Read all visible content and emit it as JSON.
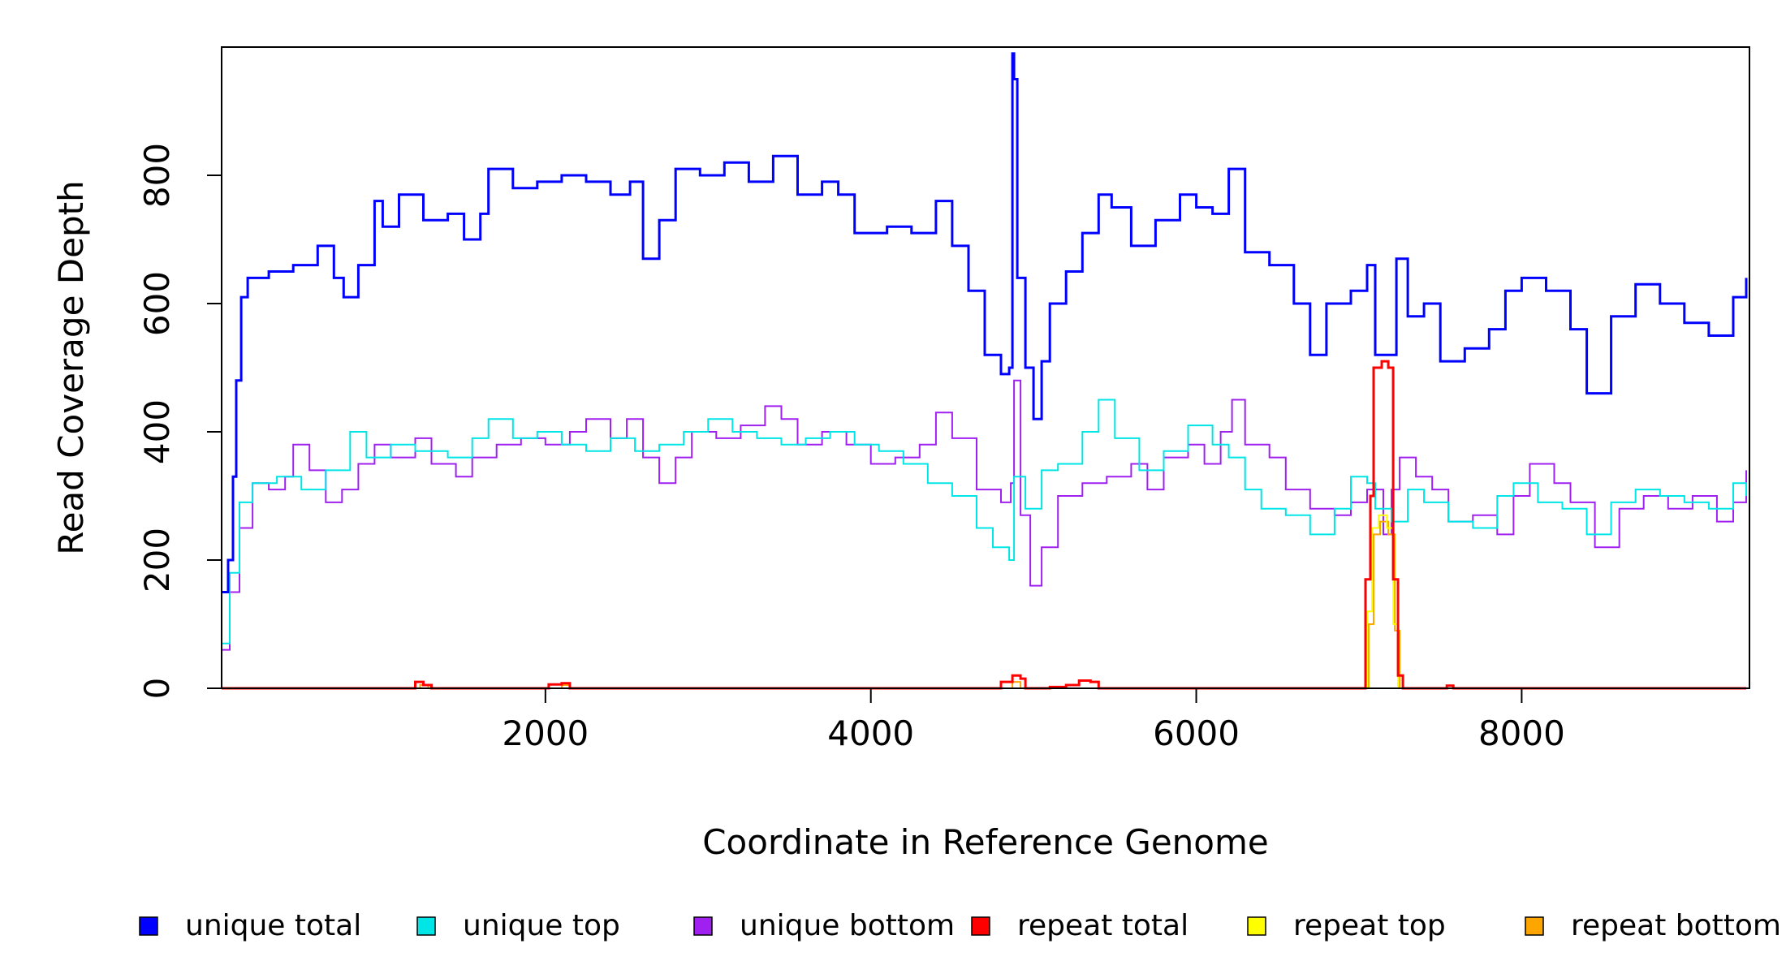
{
  "chart_data": {
    "type": "line",
    "xlabel": "Coordinate in Reference Genome",
    "ylabel": "Read Coverage Depth",
    "xlim": [
      10,
      9400
    ],
    "ylim": [
      0,
      1000
    ],
    "x_ticks": [
      2000,
      4000,
      6000,
      8000
    ],
    "x_tick_labels": [
      "2000",
      "4000",
      "6000",
      "8000"
    ],
    "y_ticks": [
      0,
      200,
      400,
      600,
      800
    ],
    "y_tick_labels": [
      "0",
      "200",
      "400",
      "600",
      "800"
    ],
    "grid": false,
    "legend_position": "bottom",
    "series": [
      {
        "name": "unique total",
        "color": "#0000ff",
        "points": [
          [
            10,
            150
          ],
          [
            50,
            200
          ],
          [
            80,
            330
          ],
          [
            100,
            480
          ],
          [
            130,
            610
          ],
          [
            170,
            640
          ],
          [
            300,
            650
          ],
          [
            450,
            660
          ],
          [
            600,
            690
          ],
          [
            700,
            640
          ],
          [
            760,
            610
          ],
          [
            850,
            660
          ],
          [
            950,
            760
          ],
          [
            1000,
            720
          ],
          [
            1100,
            770
          ],
          [
            1250,
            730
          ],
          [
            1400,
            740
          ],
          [
            1500,
            700
          ],
          [
            1600,
            740
          ],
          [
            1650,
            810
          ],
          [
            1800,
            780
          ],
          [
            1950,
            790
          ],
          [
            2100,
            800
          ],
          [
            2250,
            790
          ],
          [
            2400,
            770
          ],
          [
            2520,
            790
          ],
          [
            2600,
            670
          ],
          [
            2700,
            730
          ],
          [
            2800,
            810
          ],
          [
            2950,
            800
          ],
          [
            3100,
            820
          ],
          [
            3250,
            790
          ],
          [
            3400,
            830
          ],
          [
            3550,
            770
          ],
          [
            3700,
            790
          ],
          [
            3800,
            770
          ],
          [
            3900,
            710
          ],
          [
            4100,
            720
          ],
          [
            4250,
            710
          ],
          [
            4400,
            760
          ],
          [
            4500,
            690
          ],
          [
            4600,
            620
          ],
          [
            4700,
            520
          ],
          [
            4800,
            490
          ],
          [
            4850,
            500
          ],
          [
            4870,
            990
          ],
          [
            4880,
            950
          ],
          [
            4900,
            640
          ],
          [
            4950,
            500
          ],
          [
            5000,
            420
          ],
          [
            5050,
            510
          ],
          [
            5100,
            600
          ],
          [
            5200,
            650
          ],
          [
            5300,
            710
          ],
          [
            5400,
            770
          ],
          [
            5480,
            750
          ],
          [
            5600,
            690
          ],
          [
            5750,
            730
          ],
          [
            5900,
            770
          ],
          [
            6000,
            750
          ],
          [
            6100,
            740
          ],
          [
            6200,
            810
          ],
          [
            6300,
            680
          ],
          [
            6450,
            660
          ],
          [
            6600,
            600
          ],
          [
            6700,
            520
          ],
          [
            6800,
            600
          ],
          [
            6950,
            620
          ],
          [
            7050,
            660
          ],
          [
            7100,
            520
          ],
          [
            7180,
            520
          ],
          [
            7230,
            670
          ],
          [
            7300,
            580
          ],
          [
            7400,
            600
          ],
          [
            7500,
            510
          ],
          [
            7650,
            530
          ],
          [
            7800,
            560
          ],
          [
            7900,
            620
          ],
          [
            8000,
            640
          ],
          [
            8150,
            620
          ],
          [
            8300,
            560
          ],
          [
            8400,
            460
          ],
          [
            8550,
            580
          ],
          [
            8700,
            630
          ],
          [
            8850,
            600
          ],
          [
            9000,
            570
          ],
          [
            9150,
            550
          ],
          [
            9300,
            610
          ],
          [
            9380,
            640
          ]
        ]
      },
      {
        "name": "unique top",
        "color": "#00e5e5",
        "points": [
          [
            10,
            70
          ],
          [
            60,
            180
          ],
          [
            120,
            290
          ],
          [
            200,
            320
          ],
          [
            350,
            330
          ],
          [
            500,
            310
          ],
          [
            650,
            340
          ],
          [
            800,
            400
          ],
          [
            900,
            360
          ],
          [
            1050,
            380
          ],
          [
            1200,
            370
          ],
          [
            1400,
            360
          ],
          [
            1550,
            390
          ],
          [
            1650,
            420
          ],
          [
            1800,
            390
          ],
          [
            1950,
            400
          ],
          [
            2100,
            380
          ],
          [
            2250,
            370
          ],
          [
            2400,
            390
          ],
          [
            2550,
            370
          ],
          [
            2700,
            380
          ],
          [
            2850,
            400
          ],
          [
            3000,
            420
          ],
          [
            3150,
            400
          ],
          [
            3300,
            390
          ],
          [
            3450,
            380
          ],
          [
            3600,
            390
          ],
          [
            3750,
            400
          ],
          [
            3900,
            380
          ],
          [
            4050,
            370
          ],
          [
            4200,
            350
          ],
          [
            4350,
            320
          ],
          [
            4500,
            300
          ],
          [
            4650,
            250
          ],
          [
            4750,
            220
          ],
          [
            4850,
            200
          ],
          [
            4880,
            330
          ],
          [
            4950,
            280
          ],
          [
            5050,
            340
          ],
          [
            5150,
            350
          ],
          [
            5300,
            400
          ],
          [
            5400,
            450
          ],
          [
            5500,
            390
          ],
          [
            5650,
            340
          ],
          [
            5800,
            370
          ],
          [
            5950,
            410
          ],
          [
            6100,
            380
          ],
          [
            6200,
            360
          ],
          [
            6300,
            310
          ],
          [
            6400,
            280
          ],
          [
            6550,
            270
          ],
          [
            6700,
            240
          ],
          [
            6850,
            280
          ],
          [
            6950,
            330
          ],
          [
            7050,
            320
          ],
          [
            7100,
            280
          ],
          [
            7200,
            260
          ],
          [
            7300,
            310
          ],
          [
            7400,
            290
          ],
          [
            7550,
            260
          ],
          [
            7700,
            250
          ],
          [
            7850,
            300
          ],
          [
            7950,
            320
          ],
          [
            8100,
            290
          ],
          [
            8250,
            280
          ],
          [
            8400,
            240
          ],
          [
            8550,
            290
          ],
          [
            8700,
            310
          ],
          [
            8850,
            300
          ],
          [
            9000,
            290
          ],
          [
            9150,
            280
          ],
          [
            9300,
            320
          ],
          [
            9380,
            300
          ]
        ]
      },
      {
        "name": "unique bottom",
        "color": "#a020f0",
        "points": [
          [
            10,
            60
          ],
          [
            60,
            150
          ],
          [
            120,
            250
          ],
          [
            200,
            320
          ],
          [
            300,
            310
          ],
          [
            400,
            330
          ],
          [
            450,
            380
          ],
          [
            550,
            340
          ],
          [
            650,
            290
          ],
          [
            750,
            310
          ],
          [
            850,
            350
          ],
          [
            950,
            380
          ],
          [
            1050,
            360
          ],
          [
            1200,
            390
          ],
          [
            1300,
            350
          ],
          [
            1450,
            330
          ],
          [
            1550,
            360
          ],
          [
            1700,
            380
          ],
          [
            1850,
            390
          ],
          [
            2000,
            380
          ],
          [
            2150,
            400
          ],
          [
            2250,
            420
          ],
          [
            2400,
            390
          ],
          [
            2500,
            420
          ],
          [
            2600,
            360
          ],
          [
            2700,
            320
          ],
          [
            2800,
            360
          ],
          [
            2900,
            400
          ],
          [
            3050,
            390
          ],
          [
            3200,
            410
          ],
          [
            3350,
            440
          ],
          [
            3450,
            420
          ],
          [
            3550,
            380
          ],
          [
            3700,
            400
          ],
          [
            3850,
            380
          ],
          [
            4000,
            350
          ],
          [
            4150,
            360
          ],
          [
            4300,
            380
          ],
          [
            4400,
            430
          ],
          [
            4500,
            390
          ],
          [
            4650,
            310
          ],
          [
            4800,
            290
          ],
          [
            4860,
            320
          ],
          [
            4880,
            480
          ],
          [
            4920,
            270
          ],
          [
            4980,
            160
          ],
          [
            5050,
            220
          ],
          [
            5150,
            300
          ],
          [
            5300,
            320
          ],
          [
            5450,
            330
          ],
          [
            5600,
            350
          ],
          [
            5700,
            310
          ],
          [
            5800,
            360
          ],
          [
            5950,
            380
          ],
          [
            6050,
            350
          ],
          [
            6150,
            400
          ],
          [
            6220,
            450
          ],
          [
            6300,
            380
          ],
          [
            6450,
            360
          ],
          [
            6550,
            310
          ],
          [
            6700,
            280
          ],
          [
            6850,
            270
          ],
          [
            6950,
            290
          ],
          [
            7050,
            310
          ],
          [
            7150,
            240
          ],
          [
            7200,
            310
          ],
          [
            7250,
            360
          ],
          [
            7350,
            330
          ],
          [
            7450,
            310
          ],
          [
            7550,
            260
          ],
          [
            7700,
            270
          ],
          [
            7850,
            240
          ],
          [
            7950,
            300
          ],
          [
            8050,
            350
          ],
          [
            8200,
            320
          ],
          [
            8300,
            290
          ],
          [
            8450,
            220
          ],
          [
            8600,
            280
          ],
          [
            8750,
            300
          ],
          [
            8900,
            280
          ],
          [
            9050,
            300
          ],
          [
            9200,
            260
          ],
          [
            9300,
            290
          ],
          [
            9380,
            340
          ]
        ]
      },
      {
        "name": "repeat total",
        "color": "#ff0000",
        "points": [
          [
            10,
            0
          ],
          [
            1150,
            0
          ],
          [
            1200,
            10
          ],
          [
            1250,
            5
          ],
          [
            1300,
            0
          ],
          [
            1950,
            0
          ],
          [
            2020,
            6
          ],
          [
            2100,
            8
          ],
          [
            2150,
            0
          ],
          [
            4750,
            0
          ],
          [
            4800,
            10
          ],
          [
            4870,
            20
          ],
          [
            4920,
            15
          ],
          [
            4950,
            0
          ],
          [
            5100,
            2
          ],
          [
            5200,
            5
          ],
          [
            5280,
            12
          ],
          [
            5350,
            10
          ],
          [
            5400,
            0
          ],
          [
            7000,
            0
          ],
          [
            7040,
            170
          ],
          [
            7070,
            300
          ],
          [
            7090,
            500
          ],
          [
            7140,
            510
          ],
          [
            7180,
            500
          ],
          [
            7210,
            170
          ],
          [
            7240,
            20
          ],
          [
            7270,
            0
          ],
          [
            7500,
            0
          ],
          [
            7540,
            4
          ],
          [
            7580,
            0
          ],
          [
            9380,
            0
          ]
        ]
      },
      {
        "name": "repeat top",
        "color": "#ffff00",
        "points": [
          [
            10,
            0
          ],
          [
            7020,
            0
          ],
          [
            7050,
            120
          ],
          [
            7080,
            250
          ],
          [
            7120,
            270
          ],
          [
            7170,
            250
          ],
          [
            7210,
            100
          ],
          [
            7240,
            0
          ],
          [
            9380,
            0
          ]
        ]
      },
      {
        "name": "repeat bottom",
        "color": "#ffa500",
        "points": [
          [
            10,
            0
          ],
          [
            1180,
            0
          ],
          [
            1230,
            5
          ],
          [
            1280,
            0
          ],
          [
            2050,
            0
          ],
          [
            2100,
            5
          ],
          [
            2150,
            0
          ],
          [
            4820,
            0
          ],
          [
            4870,
            10
          ],
          [
            4920,
            0
          ],
          [
            7030,
            0
          ],
          [
            7060,
            100
          ],
          [
            7090,
            240
          ],
          [
            7130,
            260
          ],
          [
            7180,
            240
          ],
          [
            7220,
            90
          ],
          [
            7250,
            0
          ],
          [
            9380,
            0
          ]
        ]
      }
    ]
  }
}
